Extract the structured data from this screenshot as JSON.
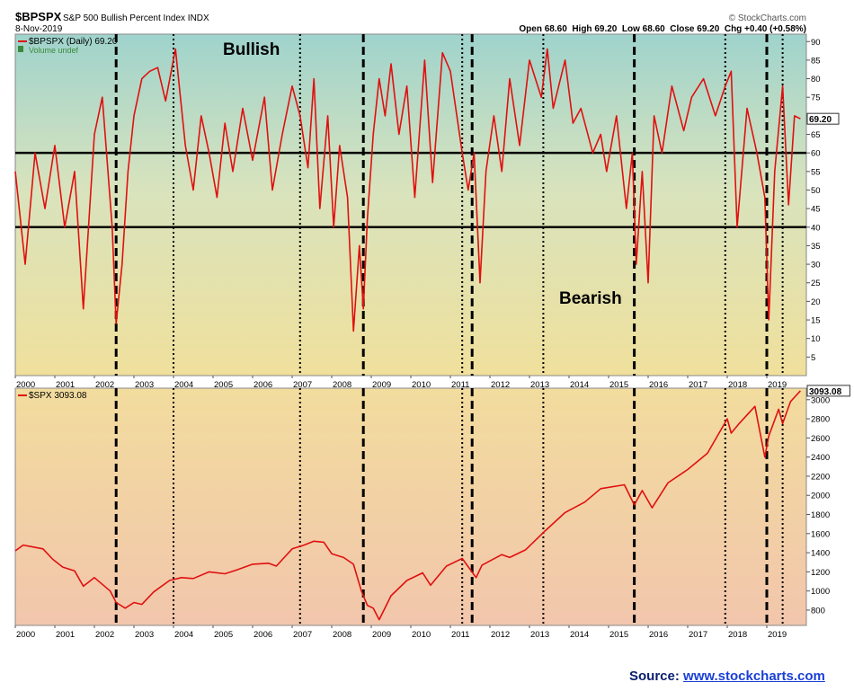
{
  "header": {
    "symbol": "$BPSPX",
    "name": "S&P 500 Bullish Percent Index",
    "exchange": "INDX",
    "date": "8-Nov-2019",
    "quote": "Open 68.60  High 69.20  Low 68.60  Close 69.20  Chg +0.40 (+0.58%)",
    "brand": "© StockCharts.com"
  },
  "source": {
    "label": "Source:",
    "link": "www.stockcharts.com"
  },
  "colors": {
    "series": "#e01010",
    "gradient_top": "#9fd3cc",
    "gradient_mid": "#e9e3a8",
    "gradient_bottom": "#f2c8a8"
  },
  "chart_data": [
    {
      "type": "line",
      "legend": [
        "$BPSPX (Daily) 69.20",
        "Volume undef"
      ],
      "annotations": [
        "Bullish",
        "Bearish"
      ],
      "last_value_label": "69.20",
      "ylim": [
        0,
        92
      ],
      "yticks": [
        5,
        10,
        15,
        20,
        25,
        30,
        35,
        40,
        45,
        50,
        55,
        60,
        65,
        70,
        75,
        80,
        85,
        90
      ],
      "reference_lines": [
        60,
        40
      ],
      "x_labels": [
        "2000",
        "2001",
        "2002",
        "2003",
        "2004",
        "2005",
        "2006",
        "2007",
        "2008",
        "2009",
        "2010",
        "2011",
        "2012",
        "2013",
        "2014",
        "2015",
        "2016",
        "2017",
        "2018",
        "2019"
      ],
      "x": [
        2000.0,
        2000.25,
        2000.5,
        2000.75,
        2001.0,
        2001.25,
        2001.5,
        2001.72,
        2002.0,
        2002.2,
        2002.45,
        2002.55,
        2002.7,
        2002.85,
        2003.0,
        2003.2,
        2003.4,
        2003.6,
        2003.8,
        2004.05,
        2004.3,
        2004.5,
        2004.7,
        2004.9,
        2005.1,
        2005.3,
        2005.5,
        2005.75,
        2006.0,
        2006.3,
        2006.5,
        2006.75,
        2007.0,
        2007.2,
        2007.4,
        2007.55,
        2007.7,
        2007.9,
        2008.05,
        2008.2,
        2008.4,
        2008.55,
        2008.7,
        2008.8,
        2008.9,
        2009.05,
        2009.2,
        2009.35,
        2009.5,
        2009.7,
        2009.9,
        2010.1,
        2010.35,
        2010.55,
        2010.8,
        2011.0,
        2011.3,
        2011.45,
        2011.6,
        2011.75,
        2011.9,
        2012.1,
        2012.3,
        2012.5,
        2012.75,
        2013.0,
        2013.3,
        2013.45,
        2013.6,
        2013.9,
        2014.1,
        2014.3,
        2014.6,
        2014.8,
        2014.95,
        2015.2,
        2015.45,
        2015.6,
        2015.7,
        2015.85,
        2016.0,
        2016.15,
        2016.35,
        2016.6,
        2016.9,
        2017.1,
        2017.4,
        2017.7,
        2017.95,
        2018.1,
        2018.25,
        2018.5,
        2018.75,
        2018.95,
        2019.05,
        2019.2,
        2019.4,
        2019.55,
        2019.7,
        2019.85
      ],
      "y": [
        55,
        30,
        60,
        45,
        62,
        40,
        55,
        18,
        65,
        75,
        40,
        14,
        30,
        55,
        70,
        80,
        82,
        83,
        74,
        88,
        62,
        50,
        70,
        60,
        48,
        68,
        55,
        72,
        58,
        75,
        50,
        65,
        78,
        70,
        56,
        80,
        45,
        70,
        40,
        62,
        48,
        12,
        35,
        18,
        42,
        65,
        80,
        70,
        84,
        65,
        78,
        48,
        85,
        52,
        87,
        82,
        60,
        50,
        60,
        25,
        55,
        70,
        55,
        80,
        62,
        85,
        75,
        88,
        72,
        85,
        68,
        72,
        60,
        65,
        55,
        70,
        45,
        60,
        30,
        55,
        25,
        70,
        60,
        78,
        66,
        75,
        80,
        70,
        78,
        82,
        40,
        72,
        60,
        48,
        15,
        55,
        78,
        46,
        70,
        69.2
      ],
      "ylabel": ""
    },
    {
      "type": "line",
      "legend": [
        "$SPX 3093.08"
      ],
      "last_value_label": "3093.08",
      "ylim": [
        640,
        3120
      ],
      "yticks": [
        800,
        1000,
        1200,
        1400,
        1600,
        1800,
        2000,
        2200,
        2400,
        2600,
        2800,
        3000
      ],
      "x_labels": [
        "2000",
        "2001",
        "2002",
        "2003",
        "2004",
        "2005",
        "2006",
        "2007",
        "2008",
        "2009",
        "2010",
        "2011",
        "2012",
        "2013",
        "2014",
        "2015",
        "2016",
        "2017",
        "2018",
        "2019"
      ],
      "x": [
        2000.0,
        2000.2,
        2000.45,
        2000.7,
        2000.95,
        2001.2,
        2001.5,
        2001.72,
        2002.0,
        2002.4,
        2002.55,
        2002.78,
        2003.0,
        2003.2,
        2003.5,
        2003.9,
        2004.2,
        2004.5,
        2004.9,
        2005.3,
        2005.6,
        2006.0,
        2006.4,
        2006.6,
        2007.0,
        2007.3,
        2007.55,
        2007.8,
        2008.0,
        2008.3,
        2008.55,
        2008.75,
        2008.9,
        2009.05,
        2009.2,
        2009.5,
        2009.9,
        2010.3,
        2010.5,
        2010.9,
        2011.3,
        2011.65,
        2011.8,
        2012.3,
        2012.5,
        2012.9,
        2013.4,
        2013.9,
        2014.4,
        2014.8,
        2015.4,
        2015.65,
        2015.85,
        2016.1,
        2016.5,
        2017.0,
        2017.5,
        2018.0,
        2018.1,
        2018.3,
        2018.7,
        2018.95,
        2019.05,
        2019.3,
        2019.4,
        2019.6,
        2019.85
      ],
      "y": [
        1420,
        1480,
        1460,
        1440,
        1330,
        1250,
        1210,
        1050,
        1140,
        1000,
        880,
        820,
        880,
        860,
        990,
        1110,
        1140,
        1130,
        1200,
        1180,
        1220,
        1280,
        1290,
        1260,
        1440,
        1480,
        1520,
        1510,
        1390,
        1350,
        1280,
        1000,
        850,
        820,
        700,
        950,
        1110,
        1190,
        1060,
        1260,
        1340,
        1140,
        1270,
        1380,
        1350,
        1430,
        1630,
        1820,
        1930,
        2070,
        2110,
        1900,
        2050,
        1870,
        2130,
        2270,
        2440,
        2800,
        2650,
        2750,
        2930,
        2400,
        2620,
        2900,
        2750,
        2980,
        3093.08
      ],
      "ylabel": ""
    }
  ],
  "signal_lines": {
    "dashed": [
      2002.55,
      2008.8,
      2011.55,
      2015.65,
      2019.0
    ],
    "dotted": [
      2004.0,
      2007.2,
      2011.3,
      2013.35,
      2017.95,
      2019.4
    ]
  }
}
